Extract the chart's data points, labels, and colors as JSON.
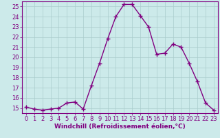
{
  "x": [
    0,
    1,
    2,
    3,
    4,
    5,
    6,
    7,
    8,
    9,
    10,
    11,
    12,
    13,
    14,
    15,
    16,
    17,
    18,
    19,
    20,
    21,
    22,
    23
  ],
  "y": [
    15.1,
    14.9,
    14.8,
    14.9,
    15.0,
    15.5,
    15.6,
    14.9,
    17.2,
    19.4,
    21.8,
    24.0,
    25.2,
    25.2,
    24.1,
    23.0,
    20.3,
    20.4,
    21.3,
    21.0,
    19.4,
    17.6,
    15.5,
    14.8
  ],
  "line_color": "#800080",
  "marker": "+",
  "marker_size": 4,
  "line_width": 1.0,
  "bg_color": "#cceaea",
  "grid_color": "#aacccc",
  "xlabel": "Windchill (Refroidissement éolien,°C)",
  "xlabel_color": "#800080",
  "xlabel_fontsize": 6.5,
  "tick_label_color": "#800080",
  "tick_fontsize": 6,
  "ylim": [
    14.5,
    25.5
  ],
  "yticks": [
    15,
    16,
    17,
    18,
    19,
    20,
    21,
    22,
    23,
    24,
    25
  ],
  "xticks": [
    0,
    1,
    2,
    3,
    4,
    5,
    6,
    7,
    8,
    9,
    10,
    11,
    12,
    13,
    14,
    15,
    16,
    17,
    18,
    19,
    20,
    21,
    22,
    23
  ],
  "xlim": [
    -0.5,
    23.5
  ]
}
